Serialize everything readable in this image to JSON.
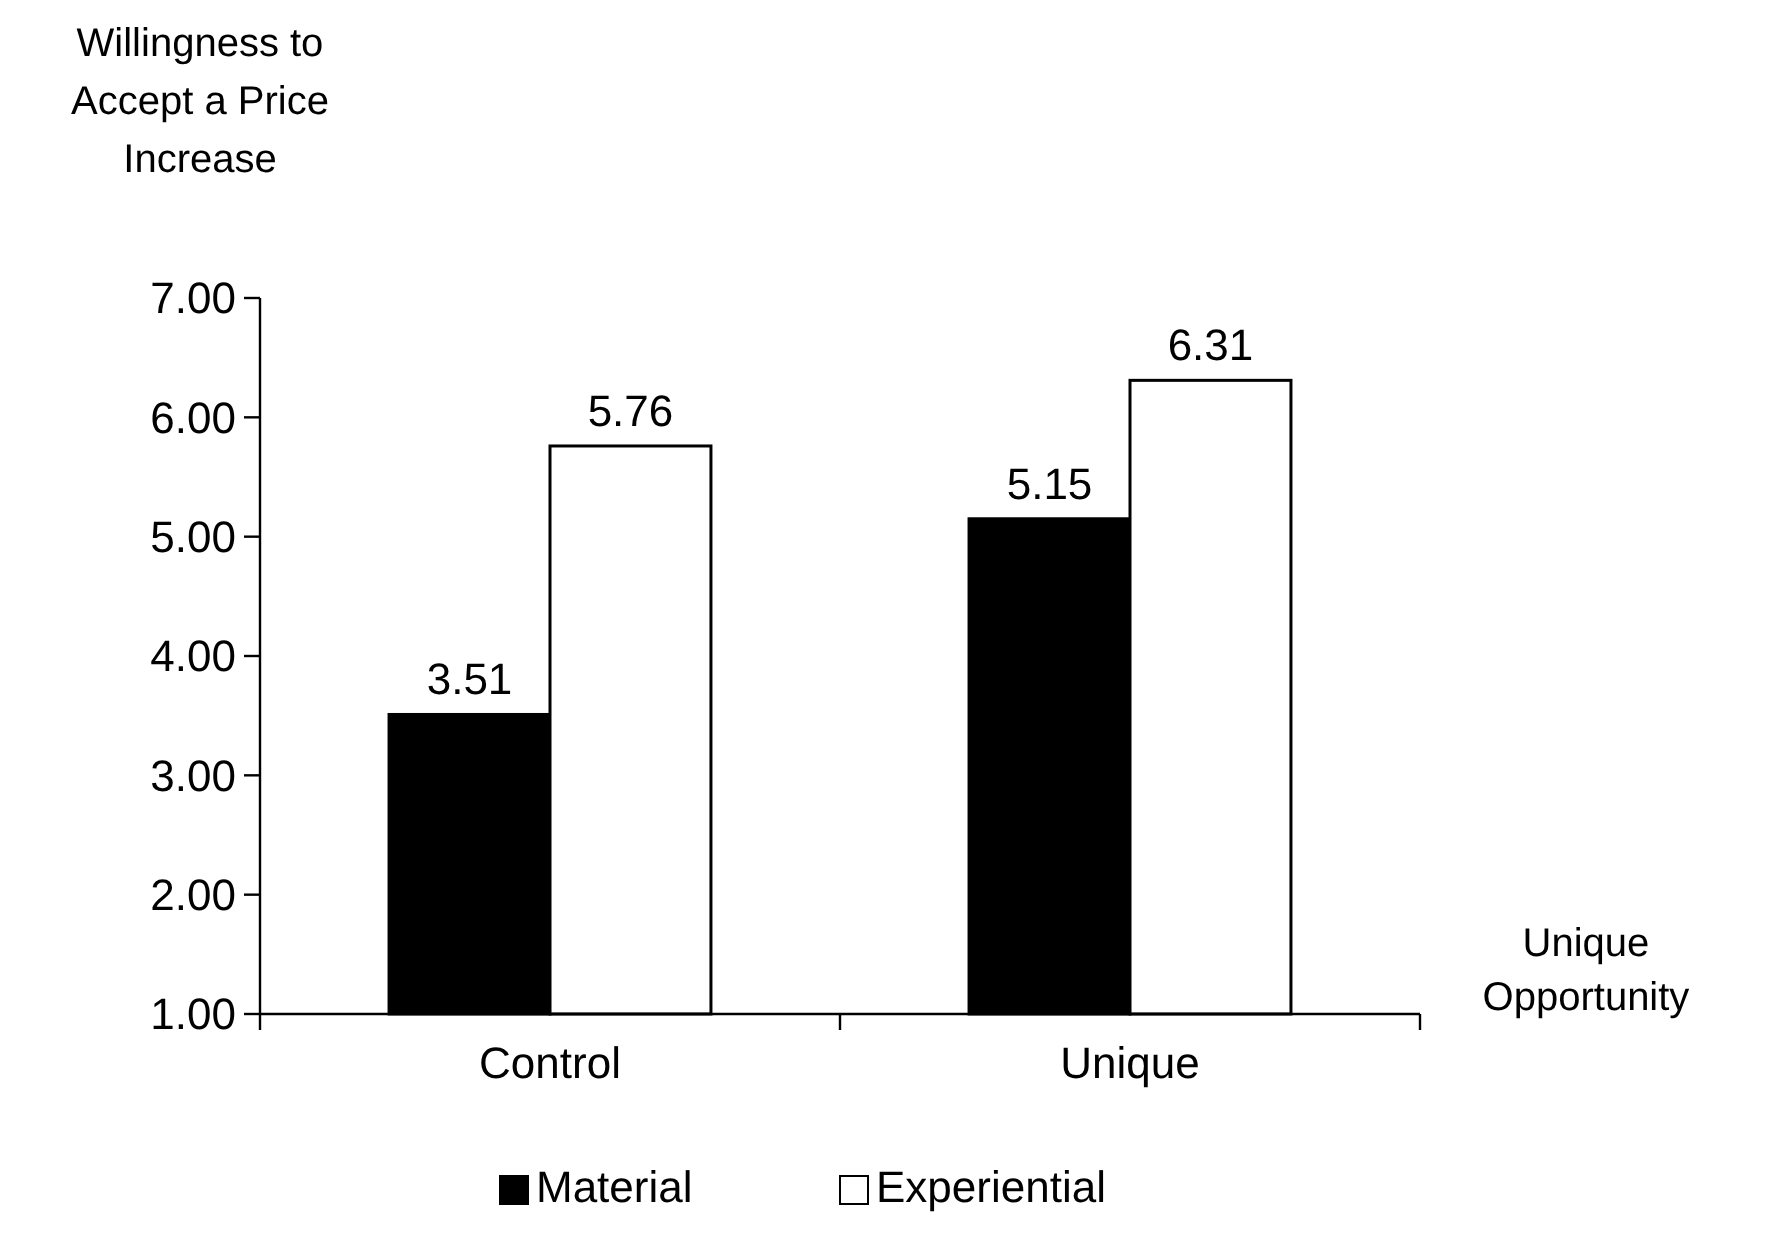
{
  "chart_data": {
    "type": "bar",
    "ylabel": "Willingness to Accept a Price Increase",
    "xlabel": "Unique Opportunity",
    "categories": [
      "Control",
      "Unique"
    ],
    "series": [
      {
        "name": "Material",
        "color": "#000000",
        "values": [
          3.51,
          5.15
        ]
      },
      {
        "name": "Experiential",
        "color": "#ffffff",
        "values": [
          5.76,
          6.31
        ]
      }
    ],
    "ylim": [
      1,
      7
    ],
    "yticks": [
      {
        "value": 1,
        "label": "1.00"
      },
      {
        "value": 2,
        "label": "2.00"
      },
      {
        "value": 3,
        "label": "3.00"
      },
      {
        "value": 4,
        "label": "4.00"
      },
      {
        "value": 5,
        "label": "5.00"
      },
      {
        "value": 6,
        "label": "6.00"
      },
      {
        "value": 7,
        "label": "7.00"
      }
    ],
    "data_labels": true,
    "grid": false,
    "legend": "bottom"
  }
}
